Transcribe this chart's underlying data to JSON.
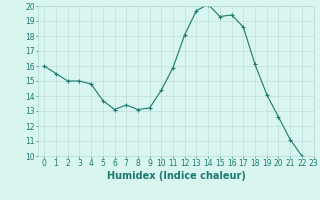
{
  "x": [
    0,
    1,
    2,
    3,
    4,
    5,
    6,
    7,
    8,
    9,
    10,
    11,
    12,
    13,
    14,
    15,
    16,
    17,
    18,
    19,
    20,
    21,
    22,
    23
  ],
  "y": [
    16.0,
    15.5,
    15.0,
    15.0,
    14.8,
    13.7,
    13.1,
    13.4,
    13.1,
    13.2,
    14.4,
    15.9,
    18.1,
    19.7,
    20.1,
    19.3,
    19.4,
    18.6,
    16.1,
    14.1,
    12.6,
    11.1,
    10.0,
    9.8
  ],
  "line_color": "#1a7a6e",
  "marker": "+",
  "marker_size": 3,
  "marker_edge_width": 0.8,
  "line_width": 0.8,
  "bg_color": "#d8f5f0",
  "grid_color": "#b8d8d4",
  "xlabel": "Humidex (Indice chaleur)",
  "xlabel_fontsize": 7,
  "tick_fontsize": 5.5,
  "ylim": [
    10,
    20
  ],
  "xlim": [
    -0.5,
    23
  ],
  "yticks": [
    10,
    11,
    12,
    13,
    14,
    15,
    16,
    17,
    18,
    19,
    20
  ],
  "xticks": [
    0,
    1,
    2,
    3,
    4,
    5,
    6,
    7,
    8,
    9,
    10,
    11,
    12,
    13,
    14,
    15,
    16,
    17,
    18,
    19,
    20,
    21,
    22,
    23
  ]
}
